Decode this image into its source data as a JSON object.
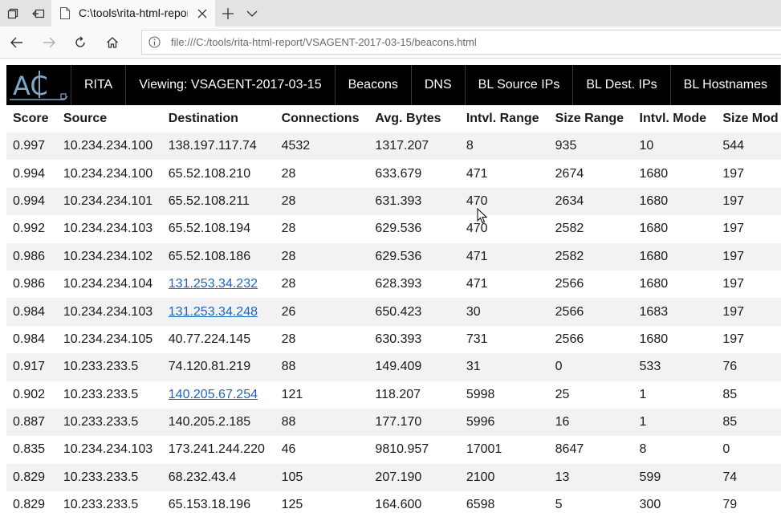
{
  "browser": {
    "tab_title": "C:\\tools\\rita-html-repor",
    "url": "file:///C:/tools/rita-html-report/VSAGENT-2017-03-15/beacons.html"
  },
  "topnav": {
    "logo_letters": "AC",
    "items": [
      "RITA",
      "Viewing: VSAGENT-2017-03-15",
      "Beacons",
      "DNS",
      "BL Source IPs",
      "BL Dest. IPs",
      "BL Hostnames"
    ]
  },
  "table": {
    "headers": [
      "Score",
      "Source",
      "Destination",
      "Connections",
      "Avg. Bytes",
      "Intvl. Range",
      "Size Range",
      "Intvl. Mode",
      "Size Mod"
    ],
    "rows": [
      {
        "cells": [
          "0.997",
          "10.234.234.100",
          "138.197.117.74",
          "4532",
          "1317.207",
          "8",
          "935",
          "10",
          "544"
        ],
        "link": false
      },
      {
        "cells": [
          "0.994",
          "10.234.234.100",
          "65.52.108.210",
          "28",
          "633.679",
          "471",
          "2674",
          "1680",
          "197"
        ],
        "link": false
      },
      {
        "cells": [
          "0.994",
          "10.234.234.101",
          "65.52.108.211",
          "28",
          "631.393",
          "470",
          "2634",
          "1680",
          "197"
        ],
        "link": false
      },
      {
        "cells": [
          "0.992",
          "10.234.234.103",
          "65.52.108.194",
          "28",
          "629.536",
          "470",
          "2582",
          "1680",
          "197"
        ],
        "link": false
      },
      {
        "cells": [
          "0.986",
          "10.234.234.102",
          "65.52.108.186",
          "28",
          "629.536",
          "471",
          "2582",
          "1680",
          "197"
        ],
        "link": false
      },
      {
        "cells": [
          "0.986",
          "10.234.234.104",
          "131.253.34.232",
          "28",
          "628.393",
          "471",
          "2566",
          "1680",
          "197"
        ],
        "link": true
      },
      {
        "cells": [
          "0.984",
          "10.234.234.103",
          "131.253.34.248",
          "26",
          "650.423",
          "30",
          "2566",
          "1683",
          "197"
        ],
        "link": true
      },
      {
        "cells": [
          "0.984",
          "10.234.234.105",
          "40.77.224.145",
          "28",
          "630.393",
          "731",
          "2566",
          "1680",
          "197"
        ],
        "link": false
      },
      {
        "cells": [
          "0.917",
          "10.233.233.5",
          "74.120.81.219",
          "88",
          "149.409",
          "31",
          "0",
          "533",
          "76"
        ],
        "link": false
      },
      {
        "cells": [
          "0.902",
          "10.233.233.5",
          "140.205.67.254",
          "121",
          "118.207",
          "5998",
          "25",
          "1",
          "85"
        ],
        "link": true
      },
      {
        "cells": [
          "0.887",
          "10.233.233.5",
          "140.205.2.185",
          "88",
          "177.170",
          "5996",
          "16",
          "1",
          "85"
        ],
        "link": false
      },
      {
        "cells": [
          "0.835",
          "10.234.234.103",
          "173.241.244.220",
          "46",
          "9810.957",
          "17001",
          "8647",
          "8",
          "0"
        ],
        "link": false
      },
      {
        "cells": [
          "0.829",
          "10.233.233.5",
          "68.232.43.4",
          "105",
          "207.190",
          "2100",
          "13",
          "599",
          "74"
        ],
        "link": false
      },
      {
        "cells": [
          "0.829",
          "10.233.233.5",
          "65.153.18.196",
          "125",
          "164.600",
          "6598",
          "5",
          "300",
          "79"
        ],
        "link": false
      }
    ]
  }
}
